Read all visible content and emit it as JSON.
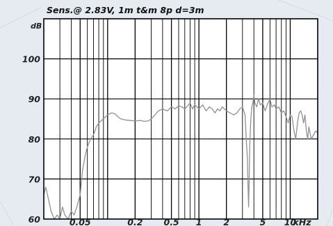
{
  "chart_data": {
    "type": "line",
    "title": "Sens.@ 2.83V, 1m t&m 8p  d=3m",
    "ylabel": "dB",
    "xscale": "log",
    "xlim": [
      0.02,
      20
    ],
    "ylim": [
      60,
      110
    ],
    "grid": true,
    "y_ticks": [
      {
        "value": 100,
        "label": "100"
      },
      {
        "value": 90,
        "label": "90"
      },
      {
        "value": 80,
        "label": "80"
      },
      {
        "value": 70,
        "label": "70"
      },
      {
        "value": 60,
        "label": "60"
      }
    ],
    "x_ticks": [
      {
        "value": 0.05,
        "label": "0.05"
      },
      {
        "value": 0.2,
        "label": "0.2"
      },
      {
        "value": 0.5,
        "label": "0.5"
      },
      {
        "value": 1,
        "label": "1"
      },
      {
        "value": 2,
        "label": "2"
      },
      {
        "value": 5,
        "label": "5"
      },
      {
        "value": 10,
        "label": "10"
      },
      {
        "value": 13.5,
        "label": "kHz"
      }
    ],
    "series": [
      {
        "color": "#909090",
        "points": [
          [
            0.02,
            66
          ],
          [
            0.021,
            68
          ],
          [
            0.022,
            66
          ],
          [
            0.024,
            62
          ],
          [
            0.026,
            60
          ],
          [
            0.028,
            61
          ],
          [
            0.03,
            60
          ],
          [
            0.032,
            63
          ],
          [
            0.034,
            61
          ],
          [
            0.037,
            60
          ],
          [
            0.04,
            62
          ],
          [
            0.043,
            61
          ],
          [
            0.046,
            63
          ],
          [
            0.05,
            66
          ],
          [
            0.053,
            72
          ],
          [
            0.057,
            76
          ],
          [
            0.06,
            78
          ],
          [
            0.065,
            80
          ],
          [
            0.07,
            81
          ],
          [
            0.075,
            83
          ],
          [
            0.08,
            84
          ],
          [
            0.09,
            85
          ],
          [
            0.1,
            86
          ],
          [
            0.11,
            86.5
          ],
          [
            0.12,
            86.3
          ],
          [
            0.13,
            85.5
          ],
          [
            0.14,
            85
          ],
          [
            0.16,
            84.7
          ],
          [
            0.18,
            84.6
          ],
          [
            0.2,
            84.5
          ],
          [
            0.23,
            84.6
          ],
          [
            0.25,
            84.4
          ],
          [
            0.28,
            84.5
          ],
          [
            0.3,
            85
          ],
          [
            0.33,
            86
          ],
          [
            0.36,
            87
          ],
          [
            0.4,
            87.5
          ],
          [
            0.45,
            87
          ],
          [
            0.5,
            88
          ],
          [
            0.55,
            87.5
          ],
          [
            0.6,
            88.3
          ],
          [
            0.65,
            88
          ],
          [
            0.7,
            87.5
          ],
          [
            0.75,
            88.2
          ],
          [
            0.8,
            89
          ],
          [
            0.85,
            87.5
          ],
          [
            0.9,
            88.5
          ],
          [
            0.95,
            88
          ],
          [
            1.0,
            87.5
          ],
          [
            1.1,
            88.5
          ],
          [
            1.2,
            87
          ],
          [
            1.3,
            88
          ],
          [
            1.4,
            87.5
          ],
          [
            1.5,
            86.5
          ],
          [
            1.6,
            87.5
          ],
          [
            1.7,
            87
          ],
          [
            1.8,
            88
          ],
          [
            1.9,
            87.5
          ],
          [
            2.0,
            87
          ],
          [
            2.2,
            86.5
          ],
          [
            2.4,
            86
          ],
          [
            2.6,
            86.5
          ],
          [
            2.8,
            87.5
          ],
          [
            3.0,
            88
          ],
          [
            3.2,
            86
          ],
          [
            3.3,
            80
          ],
          [
            3.4,
            75
          ],
          [
            3.45,
            68
          ],
          [
            3.5,
            63
          ],
          [
            3.55,
            70
          ],
          [
            3.6,
            78
          ],
          [
            3.7,
            85
          ],
          [
            3.8,
            88
          ],
          [
            3.9,
            89
          ],
          [
            4.0,
            91
          ],
          [
            4.1,
            89
          ],
          [
            4.3,
            88
          ],
          [
            4.5,
            90
          ],
          [
            4.7,
            88.5
          ],
          [
            5.0,
            89
          ],
          [
            5.3,
            87
          ],
          [
            5.6,
            88.5
          ],
          [
            6.0,
            90
          ],
          [
            6.3,
            88
          ],
          [
            6.7,
            88.5
          ],
          [
            7.0,
            87.5
          ],
          [
            7.5,
            88
          ],
          [
            8.0,
            86.5
          ],
          [
            8.5,
            87
          ],
          [
            9.0,
            85.5
          ],
          [
            9.5,
            84
          ],
          [
            10.0,
            86
          ],
          [
            10.5,
            85.5
          ],
          [
            11.0,
            82
          ],
          [
            11.5,
            80
          ],
          [
            12.0,
            84
          ],
          [
            12.5,
            86.5
          ],
          [
            13.0,
            87
          ],
          [
            13.5,
            86
          ],
          [
            14.0,
            84
          ],
          [
            14.5,
            86
          ],
          [
            15.0,
            82
          ],
          [
            15.5,
            80
          ],
          [
            16.0,
            83
          ],
          [
            16.5,
            81.5
          ],
          [
            17.0,
            80
          ],
          [
            18.0,
            81
          ],
          [
            19.0,
            82
          ],
          [
            20.0,
            81.5
          ]
        ]
      }
    ]
  }
}
